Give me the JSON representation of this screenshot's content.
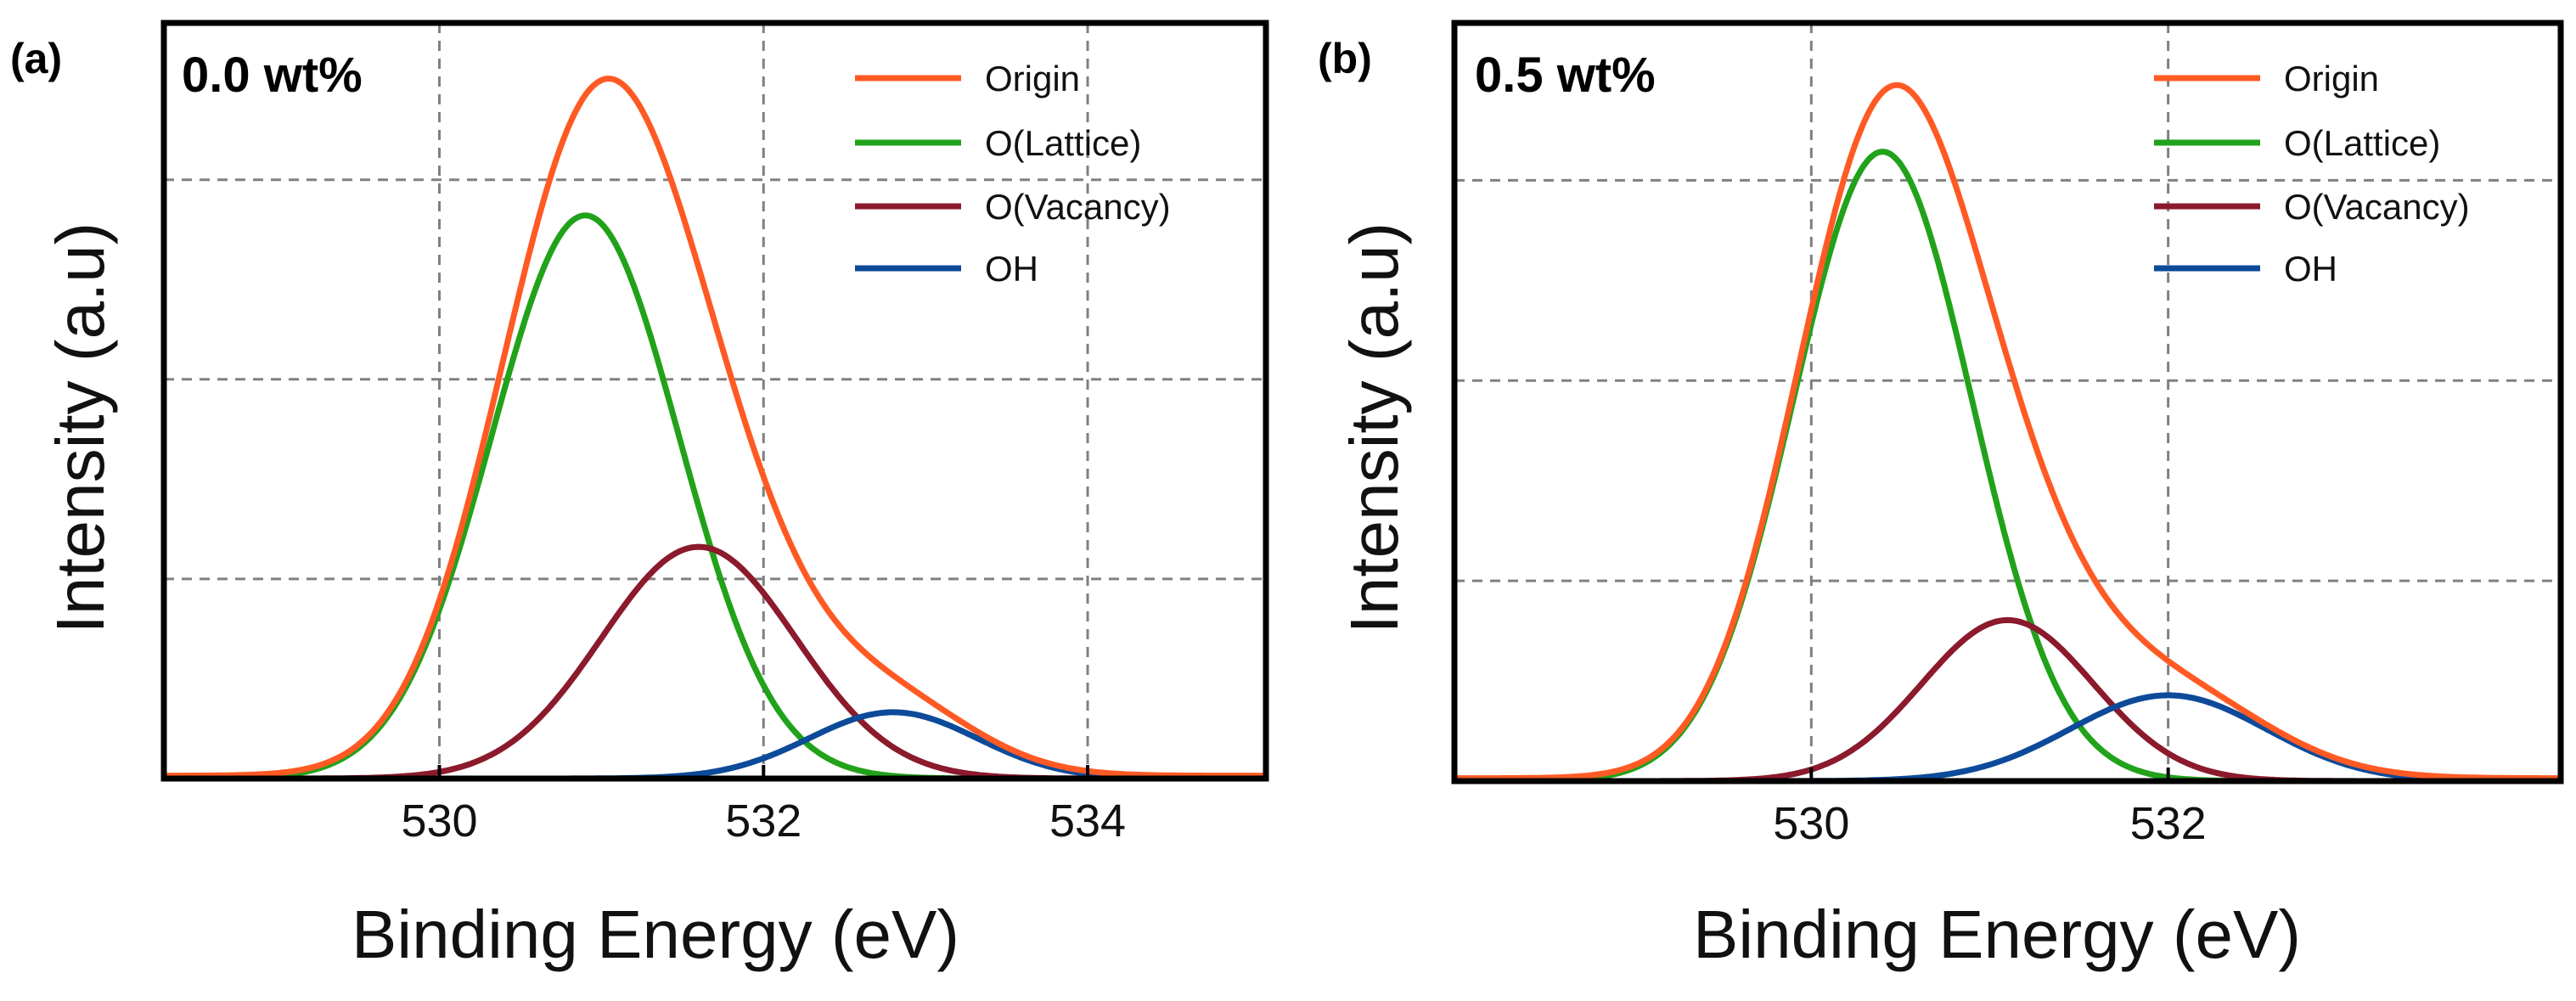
{
  "chart_data": [
    {
      "type": "line",
      "panel_label": "(a)",
      "sample_label": "0.0 wt%",
      "xlabel": "Binding Energy (eV)",
      "ylabel": "Intensity (a.u)",
      "xlim": [
        528.3,
        535.1
      ],
      "ylim": [
        0,
        1.06
      ],
      "xticks": [
        530,
        532,
        534
      ],
      "xtick_labels": [
        "530",
        "532",
        "534"
      ],
      "yticks": [
        0.28,
        0.56,
        0.84
      ],
      "y_tick_labels_shown": false,
      "grid": true,
      "legend_position": "top-right",
      "series": [
        {
          "name": "Origin",
          "color": "#ff5a24",
          "composite": true
        },
        {
          "name": "O(Lattice)",
          "color": "#21a21a",
          "center": 530.9,
          "height": 0.79,
          "sigma": 0.58
        },
        {
          "name": "O(Vacancy)",
          "color": "#8b1a2c",
          "center": 531.6,
          "height": 0.325,
          "sigma": 0.6
        },
        {
          "name": "OH",
          "color": "#0d4a99",
          "center": 532.8,
          "height": 0.093,
          "sigma": 0.52
        }
      ]
    },
    {
      "type": "line",
      "panel_label": "(b)",
      "sample_label": "0.5 wt%",
      "xlabel": "Binding Energy (eV)",
      "ylabel": "Intensity (a.u)",
      "xlim": [
        528.0,
        534.2
      ],
      "ylim": [
        0,
        1.06
      ],
      "xticks": [
        530,
        532
      ],
      "xtick_labels": [
        "530",
        "532"
      ],
      "yticks": [
        0.28,
        0.56,
        0.84
      ],
      "y_tick_labels_shown": false,
      "grid": true,
      "legend_position": "top-right",
      "series": [
        {
          "name": "Origin",
          "color": "#ff5a24",
          "composite": true
        },
        {
          "name": "O(Lattice)",
          "color": "#21a21a",
          "center": 530.4,
          "height": 0.88,
          "sigma": 0.5
        },
        {
          "name": "O(Vacancy)",
          "color": "#8b1a2c",
          "center": 531.1,
          "height": 0.225,
          "sigma": 0.48
        },
        {
          "name": "OH",
          "color": "#0d4a99",
          "center": 532.0,
          "height": 0.12,
          "sigma": 0.55
        }
      ]
    }
  ]
}
